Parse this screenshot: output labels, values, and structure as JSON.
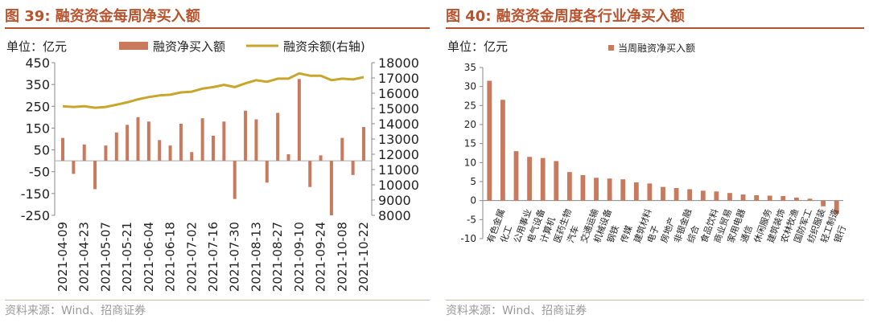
{
  "left": {
    "figure_title": "图 39:  融资资金每周净买入额",
    "source": "资料来源：Wind、招商证券",
    "colors": {
      "bar": "#c97a5c",
      "line": "#c8a62c",
      "title": "#b9532e"
    },
    "chart_data": {
      "type": "bar",
      "unit_label": "单位：亿元",
      "series": [
        {
          "name": "融资净买入额",
          "type": "bar",
          "axis": "left",
          "values": [
            105,
            -60,
            75,
            -130,
            70,
            130,
            165,
            200,
            180,
            95,
            70,
            170,
            40,
            195,
            115,
            180,
            -175,
            230,
            190,
            -100,
            220,
            30,
            375,
            -120,
            25,
            -250,
            105,
            -65,
            155
          ]
        },
        {
          "name": "融资余额(右轴)",
          "type": "line",
          "axis": "right",
          "values": [
            15150,
            15100,
            15150,
            15050,
            15100,
            15250,
            15400,
            15600,
            15750,
            15850,
            15900,
            16050,
            16100,
            16300,
            16400,
            16550,
            16400,
            16650,
            16850,
            16750,
            16950,
            16950,
            17300,
            17150,
            17150,
            16850,
            16950,
            16900,
            17050
          ]
        }
      ],
      "x_tick_labels": [
        "2021-04-09",
        "2021-04-23",
        "2021-05-07",
        "2021-05-21",
        "2021-06-04",
        "2021-06-18",
        "2021-07-02",
        "2021-07-16",
        "2021-07-30",
        "2021-08-13",
        "2021-08-27",
        "2021-09-10",
        "2021-09-24",
        "2021-10-08",
        "2021-10-22"
      ],
      "y_left_ticks": [
        "450",
        "350",
        "250",
        "150",
        "50",
        "-50",
        "-150",
        "-250"
      ],
      "y_right_ticks": [
        "18000",
        "17000",
        "16000",
        "15000",
        "14000",
        "13000",
        "12000",
        "11000",
        "10000",
        "9000",
        "8000"
      ],
      "ylim_left": [
        -250,
        450
      ],
      "ylim_right": [
        8000,
        18000
      ],
      "legend_placement": "top"
    }
  },
  "right": {
    "figure_title": "图 40:  融资资金周度各行业净买入额",
    "source": "资料来源：Wind、招商证券",
    "colors": {
      "bar": "#c97a5c",
      "title": "#b9532e"
    },
    "chart_data": {
      "type": "bar",
      "unit_label": "单位：亿元",
      "series": [
        {
          "name": "当周融资净买入额"
        }
      ],
      "categories": [
        "有色金属",
        "化工",
        "公用事业",
        "电气设备",
        "计算机",
        "医药生物",
        "汽车",
        "交通运输",
        "机械设备",
        "钢铁",
        "传媒",
        "建筑材料",
        "电子",
        "房地产",
        "非银金融",
        "综合",
        "食品饮料",
        "商业贸易",
        "家用电器",
        "通信",
        "休闲服务",
        "建筑装饰",
        "农林牧渔",
        "国防军工",
        "纺织服装",
        "轻工制造",
        "银行"
      ],
      "values": [
        31.5,
        26.5,
        13,
        11.5,
        11.2,
        10.4,
        7.5,
        6.7,
        6,
        5.8,
        5.6,
        4.8,
        4.5,
        3.6,
        3.3,
        3,
        2.6,
        2.4,
        2,
        1.6,
        1.4,
        1.3,
        1.2,
        0.8,
        0.5,
        -1.5,
        -3.5
      ],
      "y_ticks": [
        "35",
        "30",
        "25",
        "20",
        "15",
        "10",
        "5",
        "0",
        "-5",
        "-10"
      ],
      "ylim": [
        -10,
        35
      ],
      "legend_placement": "top"
    }
  }
}
